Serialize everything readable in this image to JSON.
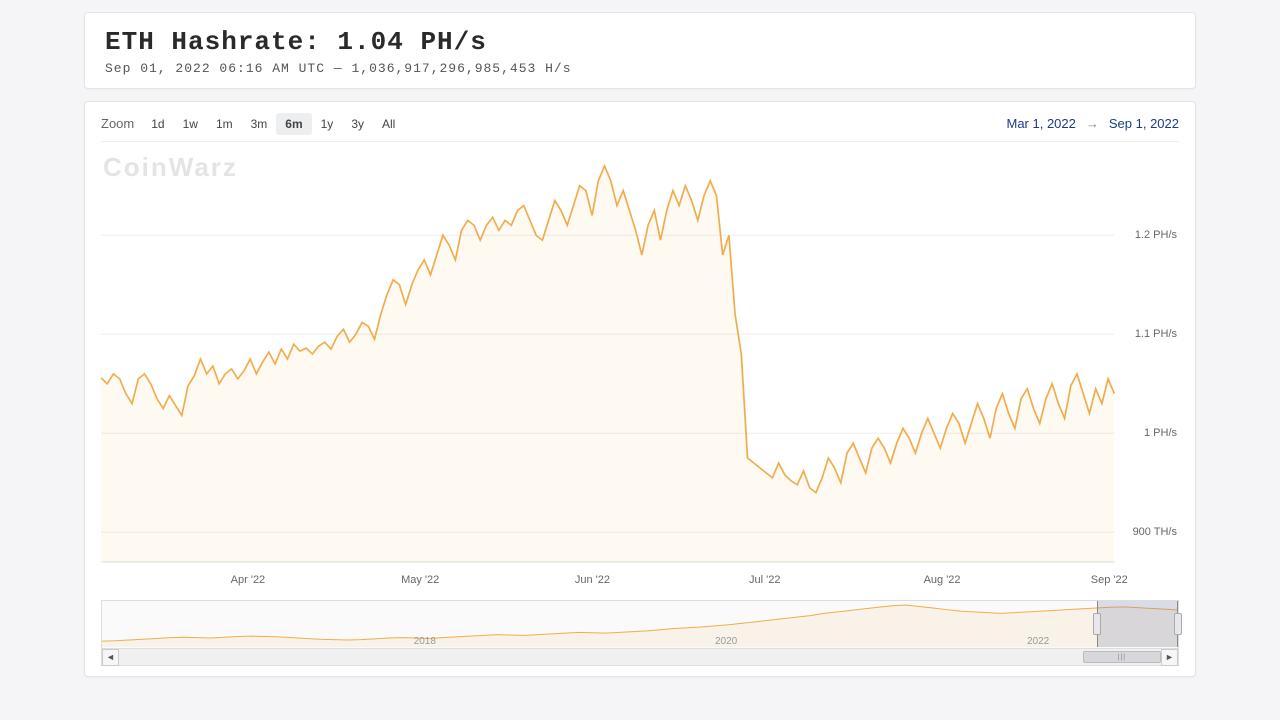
{
  "header": {
    "title": "ETH Hashrate: 1.04 PH/s",
    "timestamp": "Sep 01, 2022 06:16 AM UTC",
    "separator": "—",
    "raw_value": "1,036,917,296,985,453 H/s"
  },
  "toolbar": {
    "zoom_label": "Zoom",
    "buttons": [
      {
        "label": "1d",
        "selected": false
      },
      {
        "label": "1w",
        "selected": false
      },
      {
        "label": "1m",
        "selected": false
      },
      {
        "label": "3m",
        "selected": false
      },
      {
        "label": "6m",
        "selected": true
      },
      {
        "label": "1y",
        "selected": false
      },
      {
        "label": "3y",
        "selected": false
      },
      {
        "label": "All",
        "selected": false
      }
    ],
    "range_from": "Mar 1, 2022",
    "range_arrow": "→",
    "range_to": "Sep 1, 2022"
  },
  "watermark": "CoinWarz",
  "chart": {
    "type": "area",
    "line_color": "#f0ad4e",
    "fill_color": "rgba(240,173,78,0.08)",
    "background": "#ffffff",
    "grid_color": "#eeeeee",
    "axis_color": "#dddddd",
    "text_color": "#666666",
    "y_min": 870,
    "y_max": 1280,
    "y_ticks": [
      {
        "v": 900,
        "label": "900 TH/s"
      },
      {
        "v": 1000,
        "label": "1 PH/s"
      },
      {
        "v": 1100,
        "label": "1.1 PH/s"
      },
      {
        "v": 1200,
        "label": "1.2 PH/s"
      }
    ],
    "x_ticks": [
      {
        "f": 0.145,
        "label": "Apr '22"
      },
      {
        "f": 0.315,
        "label": "May '22"
      },
      {
        "f": 0.485,
        "label": "Jun '22"
      },
      {
        "f": 0.655,
        "label": "Jul '22"
      },
      {
        "f": 0.83,
        "label": "Aug '22"
      },
      {
        "f": 0.995,
        "label": "Sep '22"
      }
    ],
    "series": [
      1056,
      1050,
      1060,
      1055,
      1040,
      1030,
      1055,
      1060,
      1050,
      1035,
      1025,
      1038,
      1028,
      1018,
      1048,
      1058,
      1075,
      1060,
      1068,
      1050,
      1060,
      1065,
      1055,
      1063,
      1075,
      1060,
      1072,
      1082,
      1070,
      1085,
      1075,
      1090,
      1083,
      1086,
      1080,
      1088,
      1092,
      1085,
      1098,
      1105,
      1092,
      1100,
      1112,
      1108,
      1095,
      1120,
      1140,
      1155,
      1150,
      1130,
      1150,
      1165,
      1175,
      1160,
      1180,
      1200,
      1190,
      1175,
      1205,
      1215,
      1210,
      1195,
      1210,
      1218,
      1205,
      1215,
      1210,
      1225,
      1230,
      1215,
      1200,
      1195,
      1215,
      1235,
      1225,
      1210,
      1230,
      1250,
      1245,
      1220,
      1255,
      1270,
      1255,
      1230,
      1245,
      1225,
      1205,
      1180,
      1210,
      1225,
      1195,
      1225,
      1245,
      1230,
      1250,
      1235,
      1215,
      1240,
      1255,
      1240,
      1180,
      1200,
      1120,
      1080,
      975,
      970,
      965,
      960,
      955,
      970,
      958,
      952,
      948,
      962,
      945,
      940,
      955,
      975,
      965,
      950,
      980,
      990,
      975,
      960,
      985,
      995,
      985,
      970,
      990,
      1005,
      995,
      980,
      1000,
      1015,
      1000,
      985,
      1005,
      1020,
      1010,
      990,
      1010,
      1030,
      1015,
      995,
      1025,
      1040,
      1020,
      1005,
      1035,
      1045,
      1025,
      1010,
      1035,
      1050,
      1030,
      1015,
      1048,
      1060,
      1040,
      1020,
      1045,
      1030,
      1055,
      1040
    ]
  },
  "mini": {
    "line_color": "#f0ad4e",
    "x_labels": [
      {
        "f": 0.3,
        "label": "2018"
      },
      {
        "f": 0.58,
        "label": "2020"
      },
      {
        "f": 0.87,
        "label": "2022"
      }
    ],
    "series": [
      5,
      6,
      8,
      10,
      12,
      14,
      15,
      14,
      13,
      15,
      17,
      18,
      17,
      16,
      14,
      12,
      10,
      9,
      8,
      9,
      11,
      13,
      14,
      13,
      12,
      14,
      16,
      18,
      20,
      22,
      21,
      20,
      22,
      24,
      26,
      28,
      27,
      26,
      28,
      30,
      32,
      35,
      38,
      40,
      42,
      45,
      48,
      52,
      56,
      60,
      64,
      68,
      72,
      78,
      82,
      86,
      90,
      94,
      98,
      100,
      96,
      92,
      88,
      84,
      82,
      80,
      78,
      80,
      82,
      84,
      86,
      88,
      90,
      92,
      94,
      95,
      93,
      91,
      89,
      87
    ],
    "selection": {
      "start_f": 0.925,
      "end_f": 1.0
    },
    "thumb": {
      "start_f": 0.925,
      "end_f": 1.0
    }
  }
}
